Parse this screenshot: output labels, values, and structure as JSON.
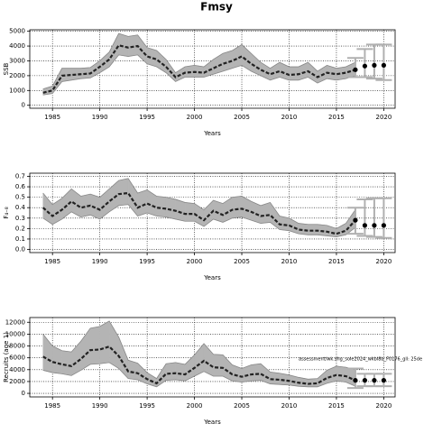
{
  "title": "Fmsy",
  "chart_data": [
    {
      "type": "line",
      "ylabel": "SSB",
      "xlabel": "Years",
      "xlim": [
        1982.6,
        2021.2
      ],
      "xticks": [
        1985,
        1990,
        1995,
        2000,
        2005,
        2010,
        2015,
        2020
      ],
      "ylim": [
        -200,
        5100
      ],
      "yticks": [
        0,
        1000,
        2000,
        3000,
        4000,
        5000
      ],
      "grid": true,
      "color": "#222222",
      "band_color": "#b4b4b4",
      "bar_color": "#b0b0b0",
      "x": [
        1984,
        1985,
        1986,
        1987,
        1988,
        1989,
        1990,
        1991,
        1992,
        1993,
        1994,
        1995,
        1996,
        1997,
        1998,
        1999,
        2000,
        2001,
        2002,
        2003,
        2004,
        2005,
        2006,
        2007,
        2008,
        2009,
        2010,
        2011,
        2012,
        2013,
        2014,
        2015,
        2016,
        2017
      ],
      "values": [
        850,
        1000,
        2000,
        2050,
        2100,
        2150,
        2600,
        3100,
        4050,
        3900,
        4000,
        3300,
        3100,
        2600,
        1900,
        2200,
        2250,
        2200,
        2500,
        2800,
        3000,
        3300,
        2800,
        2400,
        2100,
        2300,
        2050,
        2100,
        2300,
        1900,
        2200,
        2100,
        2200,
        2400
      ],
      "upper": [
        1100,
        1300,
        2500,
        2500,
        2500,
        2550,
        3000,
        3600,
        4850,
        4650,
        4750,
        3900,
        3700,
        3100,
        2200,
        2600,
        2700,
        2600,
        3100,
        3500,
        3700,
        4100,
        3500,
        2900,
        2500,
        2900,
        2600,
        2600,
        2900,
        2300,
        2700,
        2500,
        2600,
        2900
      ],
      "lower": [
        700,
        800,
        1600,
        1700,
        1800,
        1850,
        2200,
        2600,
        3400,
        3300,
        3400,
        2800,
        2600,
        2200,
        1600,
        1900,
        1900,
        1900,
        2100,
        2300,
        2500,
        2700,
        2300,
        2000,
        1700,
        1900,
        1700,
        1700,
        1900,
        1500,
        1800,
        1700,
        1800,
        2000
      ],
      "projection": {
        "x": [
          2017,
          2018,
          2019,
          2020
        ],
        "values": [
          2400,
          2650,
          2700,
          2700
        ],
        "lower": [
          1900,
          1900,
          1800,
          1700
        ],
        "upper": [
          3200,
          3800,
          4100,
          4100
        ]
      }
    },
    {
      "type": "line",
      "ylabel": "F₄₋₈",
      "xlabel": "Years",
      "xlim": [
        1982.6,
        2021.2
      ],
      "xticks": [
        1985,
        1990,
        1995,
        2000,
        2005,
        2010,
        2015,
        2020
      ],
      "ylim": [
        -0.03,
        0.73
      ],
      "yticks": [
        {
          "value": 0,
          "label": "0.0"
        },
        0.1,
        0.2,
        0.3,
        0.4,
        0.5,
        0.6,
        0.7
      ],
      "grid": true,
      "color": "#222222",
      "band_color": "#b4b4b4",
      "bar_color": "#b0b0b0",
      "x": [
        1984,
        1985,
        1986,
        1987,
        1988,
        1989,
        1990,
        1991,
        1992,
        1993,
        1994,
        1995,
        1996,
        1997,
        1998,
        1999,
        2000,
        2001,
        2002,
        2003,
        2004,
        2005,
        2006,
        2007,
        2008,
        2009,
        2010,
        2011,
        2012,
        2013,
        2014,
        2015,
        2016,
        2017
      ],
      "values": [
        0.4,
        0.32,
        0.38,
        0.46,
        0.4,
        0.42,
        0.38,
        0.46,
        0.53,
        0.54,
        0.4,
        0.44,
        0.4,
        0.39,
        0.37,
        0.34,
        0.34,
        0.28,
        0.37,
        0.33,
        0.38,
        0.39,
        0.36,
        0.32,
        0.33,
        0.24,
        0.23,
        0.19,
        0.18,
        0.18,
        0.17,
        0.15,
        0.18,
        0.28
      ],
      "upper": [
        0.54,
        0.43,
        0.49,
        0.58,
        0.51,
        0.53,
        0.5,
        0.58,
        0.66,
        0.68,
        0.54,
        0.57,
        0.51,
        0.5,
        0.48,
        0.45,
        0.44,
        0.38,
        0.47,
        0.44,
        0.5,
        0.51,
        0.46,
        0.42,
        0.45,
        0.32,
        0.3,
        0.25,
        0.24,
        0.24,
        0.23,
        0.2,
        0.25,
        0.38
      ],
      "lower": [
        0.3,
        0.24,
        0.29,
        0.36,
        0.31,
        0.33,
        0.29,
        0.36,
        0.42,
        0.43,
        0.32,
        0.35,
        0.32,
        0.31,
        0.29,
        0.27,
        0.27,
        0.22,
        0.29,
        0.26,
        0.3,
        0.31,
        0.28,
        0.25,
        0.26,
        0.19,
        0.18,
        0.15,
        0.14,
        0.14,
        0.13,
        0.12,
        0.14,
        0.21
      ],
      "projection": {
        "x": [
          2017,
          2018,
          2019,
          2020
        ],
        "values": [
          0.28,
          0.23,
          0.23,
          0.23
        ],
        "lower": [
          0.15,
          0.13,
          0.12,
          0.11
        ],
        "upper": [
          0.4,
          0.48,
          0.49,
          0.49
        ]
      }
    },
    {
      "type": "line",
      "ylabel": "Recruits (age 1)",
      "xlabel": "Years",
      "annotation": "assessment/wk.shg_sole2024_wkbl8b_F0176_gll: 25de",
      "xlim": [
        1982.6,
        2021.2
      ],
      "xticks": [
        1985,
        1990,
        1995,
        2000,
        2005,
        2010,
        2015,
        2020
      ],
      "ylim": [
        -600,
        12800
      ],
      "yticks": [
        0,
        2000,
        4000,
        6000,
        8000,
        10000,
        12000
      ],
      "grid": true,
      "color": "#222222",
      "band_color": "#b4b4b4",
      "bar_color": "#b0b0b0",
      "x": [
        1984,
        1985,
        1986,
        1987,
        1988,
        1989,
        1990,
        1991,
        1992,
        1993,
        1994,
        1995,
        1996,
        1997,
        1998,
        1999,
        2000,
        2001,
        2002,
        2003,
        2004,
        2005,
        2006,
        2007,
        2008,
        2009,
        2010,
        2011,
        2012,
        2013,
        2014,
        2015,
        2016,
        2017
      ],
      "values": [
        6200,
        5300,
        4900,
        4600,
        5800,
        7300,
        7400,
        7900,
        6300,
        3700,
        3400,
        2400,
        1700,
        3300,
        3400,
        3200,
        4300,
        5500,
        4400,
        4300,
        3200,
        2800,
        3200,
        3300,
        2400,
        2300,
        2100,
        1800,
        1600,
        1700,
        2600,
        3100,
        2900,
        2200
      ],
      "upper": [
        10000,
        8000,
        7200,
        7000,
        8800,
        11000,
        11300,
        12200,
        9500,
        5600,
        5100,
        3500,
        2500,
        5000,
        5200,
        4900,
        6500,
        8400,
        6600,
        6500,
        4800,
        4200,
        4800,
        5000,
        3600,
        3400,
        3100,
        2700,
        2400,
        2500,
        3900,
        4600,
        4400,
        4000
      ],
      "lower": [
        3900,
        3500,
        3300,
        3000,
        3900,
        4900,
        5000,
        5200,
        4200,
        2500,
        2300,
        1600,
        1100,
        2200,
        2300,
        2100,
        2900,
        3700,
        2900,
        2900,
        2100,
        1900,
        2100,
        2200,
        1600,
        1500,
        1400,
        1200,
        1100,
        1100,
        1700,
        2100,
        1900,
        1200
      ],
      "projection": {
        "x": [
          2017,
          2018,
          2019,
          2020
        ],
        "values": [
          2200,
          2200,
          2200,
          2200
        ],
        "lower": [
          900,
          1200,
          1200,
          1200
        ],
        "upper": [
          4200,
          3300,
          3300,
          3300
        ]
      }
    }
  ]
}
